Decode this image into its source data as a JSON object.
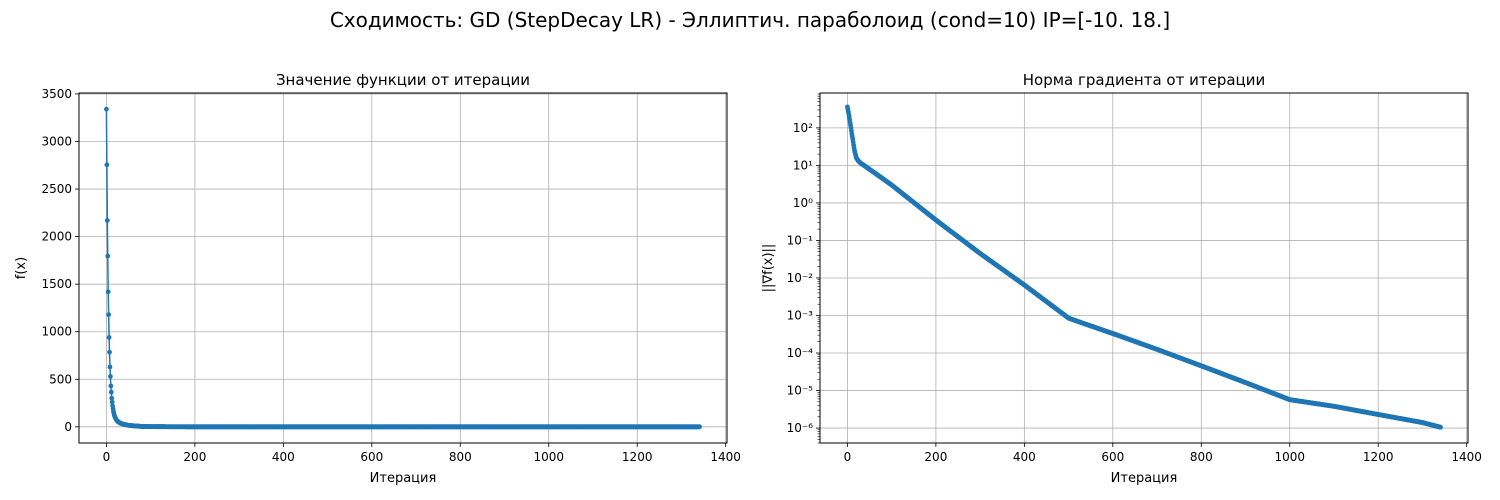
{
  "figure": {
    "suptitle": "Сходимость: GD (StepDecay LR) - Эллиптич. параболоид (cond=10) IP=[-10.  18.]"
  },
  "chart_data": [
    {
      "type": "line",
      "title": "Значение функции от итерации",
      "xlabel": "Итерация",
      "ylabel": "f(x)",
      "xlim": [
        -62,
        1403
      ],
      "ylim": [
        -170,
        3510
      ],
      "x_ticks": [
        0,
        200,
        400,
        600,
        800,
        1000,
        1200,
        1400
      ],
      "y_ticks": [
        0,
        500,
        1000,
        1500,
        2000,
        2500,
        3000,
        3500
      ],
      "grid": true,
      "log_y": false,
      "series": [
        {
          "color": "#1f77b4",
          "marker": "dot",
          "points": [
            [
              0,
              3340
            ],
            [
              2,
              2170
            ],
            [
              4,
              1420
            ],
            [
              6,
              940
            ],
            [
              8,
              630
            ],
            [
              10,
              430
            ],
            [
              12,
              300
            ],
            [
              14,
              220
            ],
            [
              16,
              160
            ],
            [
              18,
              120
            ],
            [
              20,
              95
            ],
            [
              23,
              70
            ],
            [
              26,
              55
            ],
            [
              30,
              42
            ],
            [
              35,
              32
            ],
            [
              40,
              25
            ],
            [
              50,
              16
            ],
            [
              60,
              11
            ],
            [
              70,
              8
            ],
            [
              80,
              4
            ],
            [
              100,
              2
            ],
            [
              150,
              0.8
            ],
            [
              200,
              0.3
            ],
            [
              300,
              0.05
            ],
            [
              500,
              0.0002
            ],
            [
              1000,
              1e-06
            ],
            [
              1341,
              0
            ]
          ],
          "note_x_range": [
            0,
            1341
          ]
        }
      ]
    },
    {
      "type": "line",
      "title": "Норма градиента от итерации",
      "xlabel": "Итерация",
      "ylabel": "||∇f(x)||",
      "xlim": [
        -62,
        1403
      ],
      "ylim": [
        4e-07,
        850
      ],
      "x_ticks": [
        0,
        200,
        400,
        600,
        800,
        1000,
        1200,
        1400
      ],
      "y_ticks": [
        1e-06,
        1e-05,
        0.0001,
        0.001,
        0.01,
        0.1,
        1,
        10,
        100
      ],
      "y_tick_labels": [
        "10⁻⁶",
        "10⁻⁵",
        "10⁻⁴",
        "10⁻³",
        "10⁻²",
        "10⁻¹",
        "10⁰",
        "10¹",
        "10²"
      ],
      "grid": true,
      "log_y": true,
      "series": [
        {
          "color": "#1f77b4",
          "marker": "dot",
          "points": [
            [
              0,
              360
            ],
            [
              2,
              270
            ],
            [
              4,
              200
            ],
            [
              6,
              140
            ],
            [
              8,
              100
            ],
            [
              10,
              70
            ],
            [
              12,
              50
            ],
            [
              14,
              35
            ],
            [
              16,
              25
            ],
            [
              18,
              20
            ],
            [
              20,
              16
            ],
            [
              25,
              13
            ],
            [
              30,
              11.5
            ],
            [
              40,
              9.5
            ],
            [
              60,
              6.5
            ],
            [
              100,
              3.0
            ],
            [
              200,
              0.35
            ],
            [
              300,
              0.045
            ],
            [
              400,
              0.0065
            ],
            [
              500,
              0.00085
            ],
            [
              520,
              0.0007
            ],
            [
              600,
              0.00033
            ],
            [
              700,
              0.000125
            ],
            [
              800,
              4.55e-05
            ],
            [
              900,
              1.63e-05
            ],
            [
              1000,
              5.7e-06
            ],
            [
              1100,
              3.8e-06
            ],
            [
              1200,
              2.3e-06
            ],
            [
              1300,
              1.4e-06
            ],
            [
              1341,
              1.05e-06
            ]
          ]
        }
      ]
    }
  ]
}
